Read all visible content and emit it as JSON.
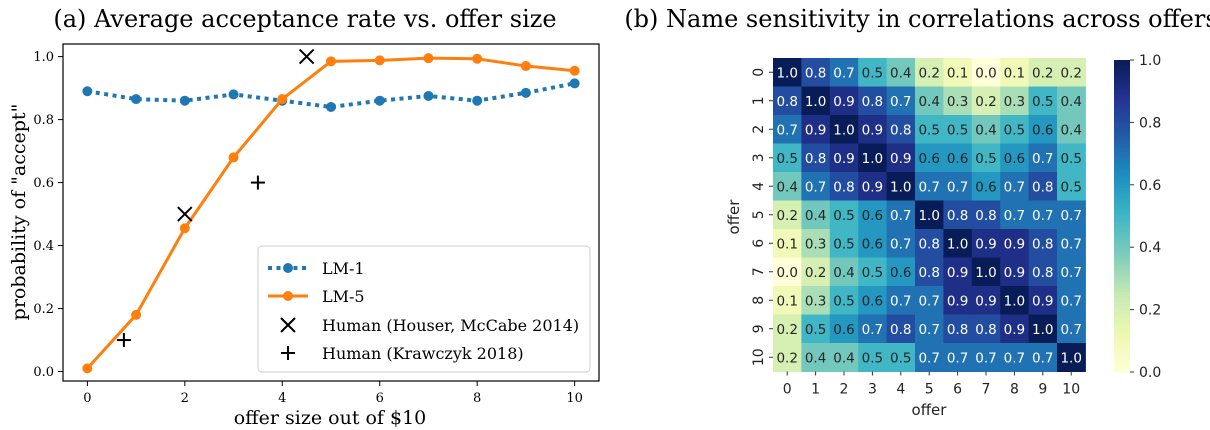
{
  "chart_data": [
    {
      "type": "line",
      "title": "(a) Average acceptance rate vs. offer size",
      "xlabel": "offer size out of $10",
      "ylabel": "probability of \"accept\"",
      "xlim": [
        -0.5,
        10.5
      ],
      "ylim": [
        -0.03,
        1.04
      ],
      "xticks": [
        0,
        2,
        4,
        6,
        8,
        10
      ],
      "xtick_labels": [
        "0",
        "2",
        "4",
        "6",
        "8",
        "10"
      ],
      "yticks": [
        0.0,
        0.2,
        0.4,
        0.6,
        0.8,
        1.0
      ],
      "ytick_labels": [
        "0.0",
        "0.2",
        "0.4",
        "0.6",
        "0.8",
        "1.0"
      ],
      "grid": false,
      "legend_position": "bottom-right",
      "series": [
        {
          "name": "LM-1",
          "style": "dotted",
          "marker": "circle",
          "color": "#1f77b4",
          "x": [
            0,
            1,
            2,
            3,
            4,
            5,
            6,
            7,
            8,
            9,
            10
          ],
          "y": [
            0.89,
            0.865,
            0.86,
            0.88,
            0.86,
            0.84,
            0.86,
            0.875,
            0.86,
            0.885,
            0.915
          ]
        },
        {
          "name": "LM-5",
          "style": "solid",
          "marker": "circle",
          "color": "#ff7f0e",
          "x": [
            0,
            1,
            2,
            3,
            4,
            5,
            6,
            7,
            8,
            9,
            10
          ],
          "y": [
            0.01,
            0.18,
            0.455,
            0.68,
            0.865,
            0.985,
            0.988,
            0.995,
            0.993,
            0.97,
            0.955
          ]
        },
        {
          "name": "Human (Houser, McCabe 2014)",
          "style": "none",
          "marker": "x",
          "color": "#000000",
          "x": [
            2,
            4.5
          ],
          "y": [
            0.5,
            1.0
          ]
        },
        {
          "name": "Human (Krawczyk 2018)",
          "style": "none",
          "marker": "plus",
          "color": "#000000",
          "x": [
            0.75,
            3.5
          ],
          "y": [
            0.1,
            0.6
          ]
        }
      ]
    },
    {
      "type": "heatmap",
      "title": "(b) Name sensitivity in correlations across offers",
      "xlabel": "offer",
      "ylabel": "offer",
      "x_categories": [
        "0",
        "1",
        "2",
        "3",
        "4",
        "5",
        "6",
        "7",
        "8",
        "9",
        "10"
      ],
      "y_categories": [
        "0",
        "1",
        "2",
        "3",
        "4",
        "5",
        "6",
        "7",
        "8",
        "9",
        "10"
      ],
      "colormap": "YlGnBu",
      "vmin": 0.0,
      "vmax": 1.0,
      "colorbar_ticks": [
        0.0,
        0.2,
        0.4,
        0.6,
        0.8,
        1.0
      ],
      "colorbar_tick_labels": [
        "0.0",
        "0.2",
        "0.4",
        "0.6",
        "0.8",
        "1.0"
      ],
      "values": [
        [
          1.0,
          0.8,
          0.7,
          0.5,
          0.4,
          0.2,
          0.1,
          0.0,
          0.1,
          0.2,
          0.2
        ],
        [
          0.8,
          1.0,
          0.9,
          0.8,
          0.7,
          0.4,
          0.3,
          0.2,
          0.3,
          0.5,
          0.4
        ],
        [
          0.7,
          0.9,
          1.0,
          0.9,
          0.8,
          0.5,
          0.5,
          0.4,
          0.5,
          0.6,
          0.4
        ],
        [
          0.5,
          0.8,
          0.9,
          1.0,
          0.9,
          0.6,
          0.6,
          0.5,
          0.6,
          0.7,
          0.5
        ],
        [
          0.4,
          0.7,
          0.8,
          0.9,
          1.0,
          0.7,
          0.7,
          0.6,
          0.7,
          0.8,
          0.5
        ],
        [
          0.2,
          0.4,
          0.5,
          0.6,
          0.7,
          1.0,
          0.8,
          0.8,
          0.7,
          0.7,
          0.7
        ],
        [
          0.1,
          0.3,
          0.5,
          0.6,
          0.7,
          0.8,
          1.0,
          0.9,
          0.9,
          0.8,
          0.7
        ],
        [
          0.0,
          0.2,
          0.4,
          0.5,
          0.6,
          0.8,
          0.9,
          1.0,
          0.9,
          0.8,
          0.7
        ],
        [
          0.1,
          0.3,
          0.5,
          0.6,
          0.7,
          0.7,
          0.9,
          0.9,
          1.0,
          0.9,
          0.7
        ],
        [
          0.2,
          0.5,
          0.6,
          0.7,
          0.8,
          0.7,
          0.8,
          0.8,
          0.9,
          1.0,
          0.7
        ],
        [
          0.2,
          0.4,
          0.4,
          0.5,
          0.5,
          0.7,
          0.7,
          0.7,
          0.7,
          0.7,
          1.0
        ]
      ]
    }
  ]
}
